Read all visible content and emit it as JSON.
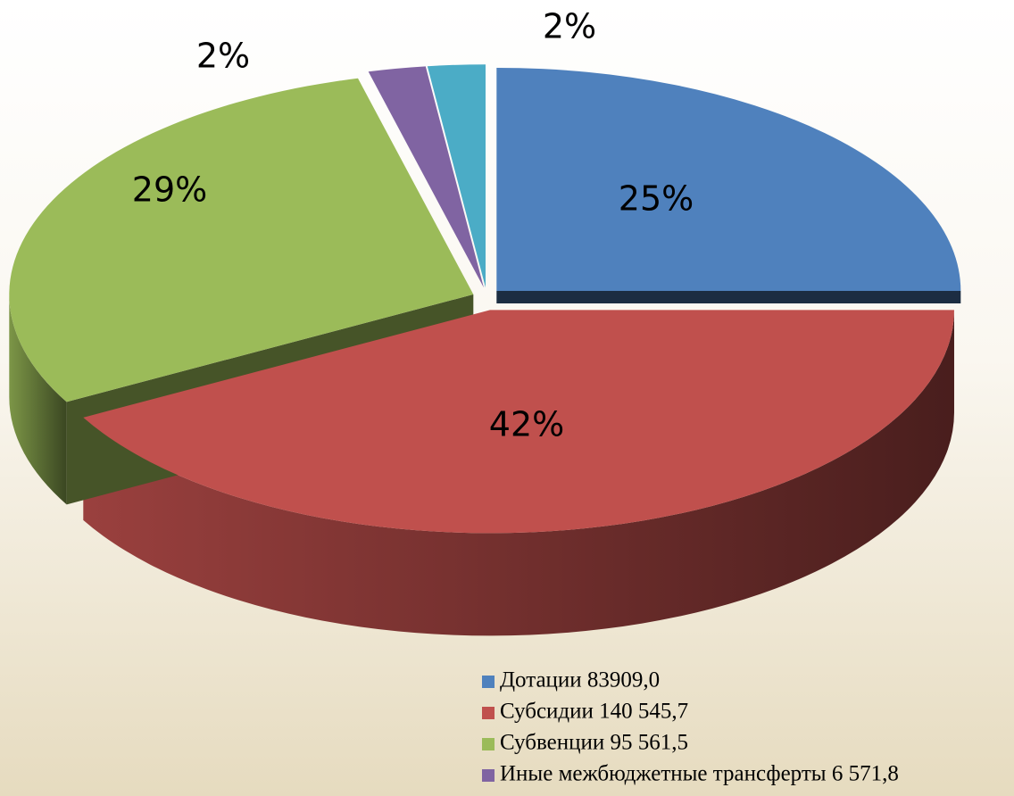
{
  "chart_data": {
    "type": "pie",
    "categories": [
      "Дотации 83909,0",
      "Субсидии 140 545,7",
      "Субвенции 95 561,5",
      "Иные межбюджетные трансферты 6 571,8",
      null
    ],
    "values": [
      25,
      42,
      29,
      2,
      2
    ],
    "value_labels": [
      "25%",
      "42%",
      "29%",
      "2%",
      "2%"
    ],
    "colors": [
      "#4f81bd",
      "#c0504d",
      "#9bbb59",
      "#8064a2",
      "#4bacc6"
    ],
    "legend": "bottom-right"
  }
}
